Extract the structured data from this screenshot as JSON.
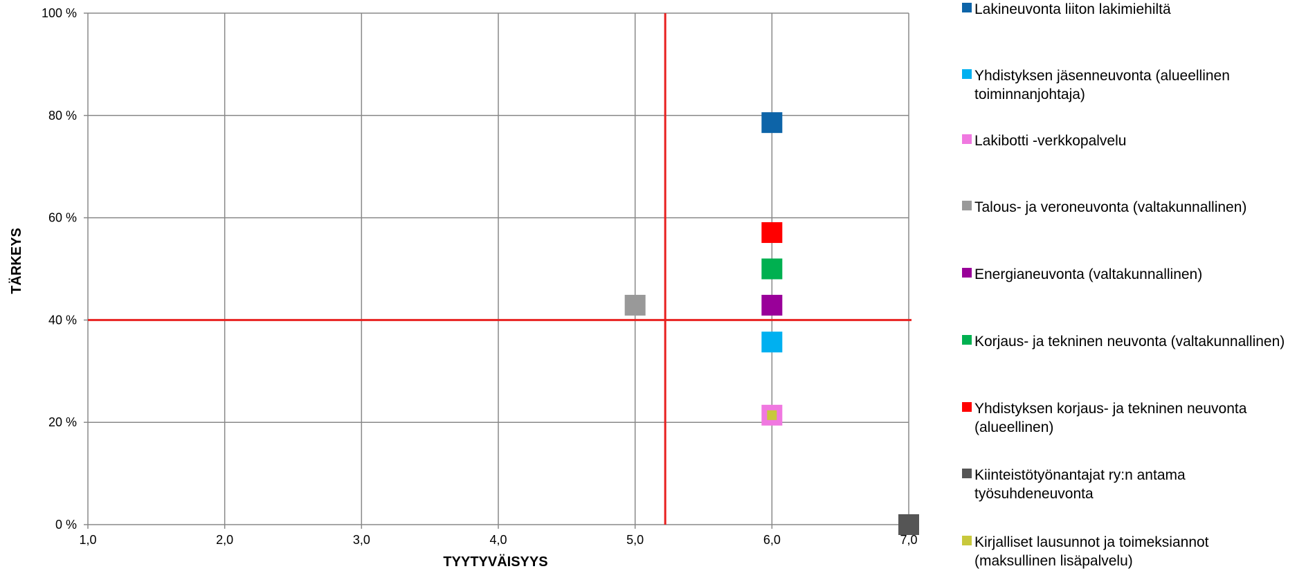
{
  "chart_data": {
    "type": "scatter",
    "title": "",
    "xlabel": "TYYTYVÄISYYS",
    "ylabel": "TÄRKEYS",
    "xlim": [
      1.0,
      7.0
    ],
    "ylim": [
      0,
      100
    ],
    "x_ticks": [
      "1,0",
      "2,0",
      "3,0",
      "4,0",
      "5,0",
      "6,0",
      "7,0"
    ],
    "y_ticks": [
      "0 %",
      "20 %",
      "40 %",
      "60 %",
      "80 %",
      "100 %"
    ],
    "grid": true,
    "legend_position": "right",
    "reference_lines": {
      "x": 5.22,
      "y": 40,
      "color": "#E8201F"
    },
    "series": [
      {
        "name": "Lakineuvonta liiton lakimiehiltä",
        "color": "#0D64A8",
        "x": 6.0,
        "y": 78.6
      },
      {
        "name": "Yhdistyksen jäsenneuvonta (alueellinen toiminnanjohtaja)",
        "color": "#00B0F0",
        "x": 6.0,
        "y": 35.7
      },
      {
        "name": "Lakibotti -verkkopalvelu",
        "color": "#F078E0",
        "x": 6.0,
        "y": 21.4
      },
      {
        "name": "Talous- ja veroneuvonta (valtakunnallinen)",
        "color": "#999999",
        "x": 5.0,
        "y": 42.9
      },
      {
        "name": "Energianeuvonta (valtakunnallinen)",
        "color": "#990099",
        "x": 6.0,
        "y": 42.9
      },
      {
        "name": "Korjaus- ja tekninen neuvonta (valtakunnallinen)",
        "color": "#00B050",
        "x": 6.0,
        "y": 50.0
      },
      {
        "name": "Yhdistyksen korjaus- ja tekninen neuvonta (alueellinen)",
        "color": "#FF0000",
        "x": 6.0,
        "y": 57.1
      },
      {
        "name": "Kiinteistötyönantajat ry:n antama työsuhdeneuvonta",
        "color": "#555555",
        "x": 7.0,
        "y": 0.0
      },
      {
        "name": "Kirjalliset lausunnot ja toimeksiannot (maksullinen lisäpalvelu)",
        "color": "#C8C83C",
        "x": 6.0,
        "y": 21.4
      }
    ]
  }
}
